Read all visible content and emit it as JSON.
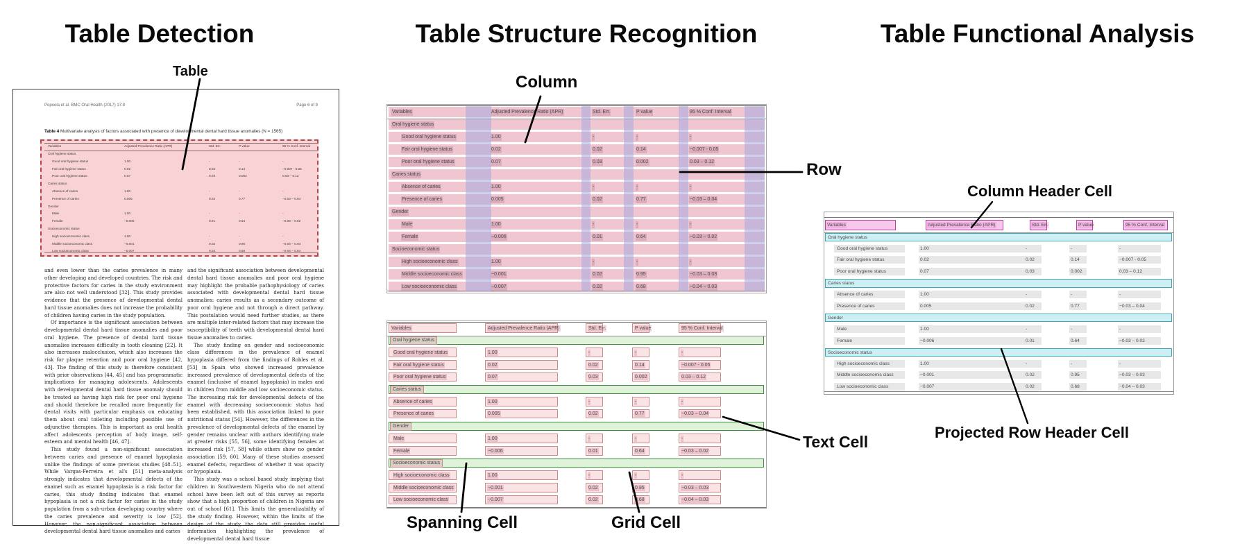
{
  "titles": {
    "detection": "Table Detection",
    "structure": "Table Structure Recognition",
    "functional": "Table Functional Analysis"
  },
  "callouts": {
    "table": "Table",
    "column": "Column",
    "row": "Row",
    "spanning_cell": "Spanning Cell",
    "grid_cell": "Grid Cell",
    "text_cell": "Text Cell",
    "column_header_cell": "Column Header Cell",
    "projected_row_header_cell": "Projected Row Header Cell"
  },
  "document": {
    "header_left": "Popoola et al. BMC Oral Health  (2017) 17:8",
    "header_right": "Page 6 of 8",
    "caption_label": "Table 4",
    "caption_text": "Multivariate analysis of factors associated with presence of developmental dental hard tissue anomalies (N = 1565)",
    "body_left": [
      "and even lower than the caries prevalence in many other developing and developed countries. The risk and protective factors for caries in the study environment are also not well understood [32]. This study provides evidence that the presence of developmental dental hard tissue anomalies does not increase the probability of children having caries in the study population.",
      "Of importance is the significant association between developmental dental hard tissue anomalies and poor oral hygiene. The presence of dental hard tissue anomalies increases difficulty in tooth cleaning [22]. It also increases malocclusion, which also increases the risk for plaque retention and poor oral hygiene [42, 43]. The finding of this study is therefore consistent with prior observations [44, 45] and has programmatic implications for managing adolescents. Adolescents with developmental dental hard tissue anomaly should be treated as having high risk for poor oral hygiene and should therefore be recalled more frequently for dental visits with particular emphasis on educating them about oral toileting including possible use of adjunctive therapies. This is important as oral health affect adolescents perception of body image, self-esteem and mental health [46, 47].",
      "This study found a non-significant association between caries and presence of enamel hypoplasia unlike the findings of some previous studies [48–51]. While Vargas-Ferreira et al's [51] meta-analysis strongly indicates that developmental defects of the enamel such as enamel hypoplasia is a risk factor for caries, this study finding indicates that enamel hypoplasia is not a risk factor for caries in the study population from a sub-urban developing country where the caries prevalence and severity is low [52]. However, the non-significant association between developmental dental hard tissue anomalies and caries"
    ],
    "body_right": [
      "and the significant association between developmental dental hard tissue anomalies and poor oral hygiene may highlight the probable pathophysiology of caries associated with developmental dental hard tissue anomalies: caries results as a secondary outcome of poor oral hygiene and not through a direct pathway. This postulation would need further studies, as there are multiple inter-related factors that may increase the susceptibility of teeth with developmental dental hard tissue anomalies to caries.",
      "The study finding on gender and socioeconomic class differences in the prevalence of enamel hypoplasia differed from the findings of Robles et al. [53] in Spain who showed increased prevalence increased prevalence of developmental defects of the enamel (inclusive of enamel hypoplasia) in males and in children from middle and low socioeconomic status. The increasing risk for developmental defects of the enamel with decreasing socioeconomic status had been established, with this association linked to poor nutritional status [54]. However, the differences in the prevalence of developmental defects of the enamel by gender remains unclear with authors identifying male at greater risks [55, 56], some identifying females at increased risk [57, 58] while others show no gender association [59, 60]. Many of these studies assessed enamel defects, regardless of whether it was opacity or hypoplasia.",
      "This study was a school based study implying that children in Southwestern Nigeria who do not attend school have been left out of this survey as reports show that a high proportion of children in Nigeria are out of school [61]. This limits the generalizability of the study finding. However, within the limits of the design of the study, the data still provides useful information highlighting the prevalence of developmental dental hard tissue"
    ]
  },
  "table": {
    "columns": [
      "Variables",
      "Adjusted Prevalence Ratio (APR)",
      "Std. Err.",
      "P value",
      "95 % Conf. Interval"
    ],
    "rows": [
      {
        "t": "sec",
        "label": "Oral hygiene status"
      },
      {
        "t": "d",
        "c": [
          "Good oral hygiene status",
          "1.00",
          "-",
          "-",
          "-"
        ]
      },
      {
        "t": "d",
        "c": [
          "Fair oral hygiene status",
          "0.02",
          "0.02",
          "0.14",
          "−0.007 - 0.05"
        ]
      },
      {
        "t": "d",
        "c": [
          "Poor oral hygiene status",
          "0.07",
          "0.03",
          "0.002",
          "0.03 – 0.12"
        ]
      },
      {
        "t": "sec",
        "label": "Caries status"
      },
      {
        "t": "d",
        "c": [
          "Absence of caries",
          "1.00",
          "-",
          "-",
          "-"
        ]
      },
      {
        "t": "d",
        "c": [
          "Presence of caries",
          "0.005",
          "0.02",
          "0.77",
          "−0.03 – 0.04"
        ]
      },
      {
        "t": "sec",
        "label": "Gender"
      },
      {
        "t": "d",
        "c": [
          "Male",
          "1.00",
          "-",
          "-",
          "-"
        ]
      },
      {
        "t": "d",
        "c": [
          "Female",
          "−0.006",
          "0.01",
          "0.64",
          "−0.03 – 0.02"
        ]
      },
      {
        "t": "sec",
        "label": "Socioeconomic status"
      },
      {
        "t": "d",
        "c": [
          "High socioeconomic class",
          "1.00",
          "-",
          "-",
          "-"
        ]
      },
      {
        "t": "d",
        "c": [
          "Middle socioeconomic class",
          "−0.001",
          "0.02",
          "0.95",
          "−0.03 – 0.03"
        ]
      },
      {
        "t": "d",
        "c": [
          "Low socioeconomic class",
          "−0.007",
          "0.02",
          "0.68",
          "−0.04 – 0.03"
        ]
      }
    ]
  },
  "colors": {
    "detection_fill": "#f8d2d5",
    "detection_border": "#b64545",
    "row_band_pink": "#f0c7d0",
    "column_stripe_lavender": "rgba(168,168,224,0.55)",
    "text_highlight_mauve": "rgba(150,80,125,0.22)",
    "grid_cell_fill": "#fae3e4",
    "grid_cell_border": "#c98c8c",
    "grid_text_highlight": "rgba(205,120,145,0.30)",
    "spanning_fill": "#dff2da",
    "spanning_border": "#3f8f3f",
    "column_header_fill": "#f8c7ec",
    "column_header_border": "#b83fa5",
    "projected_row_fill": "#cdeef2",
    "projected_row_border": "#3fa9b5",
    "text_cell_gray": "#e7e7e7"
  }
}
